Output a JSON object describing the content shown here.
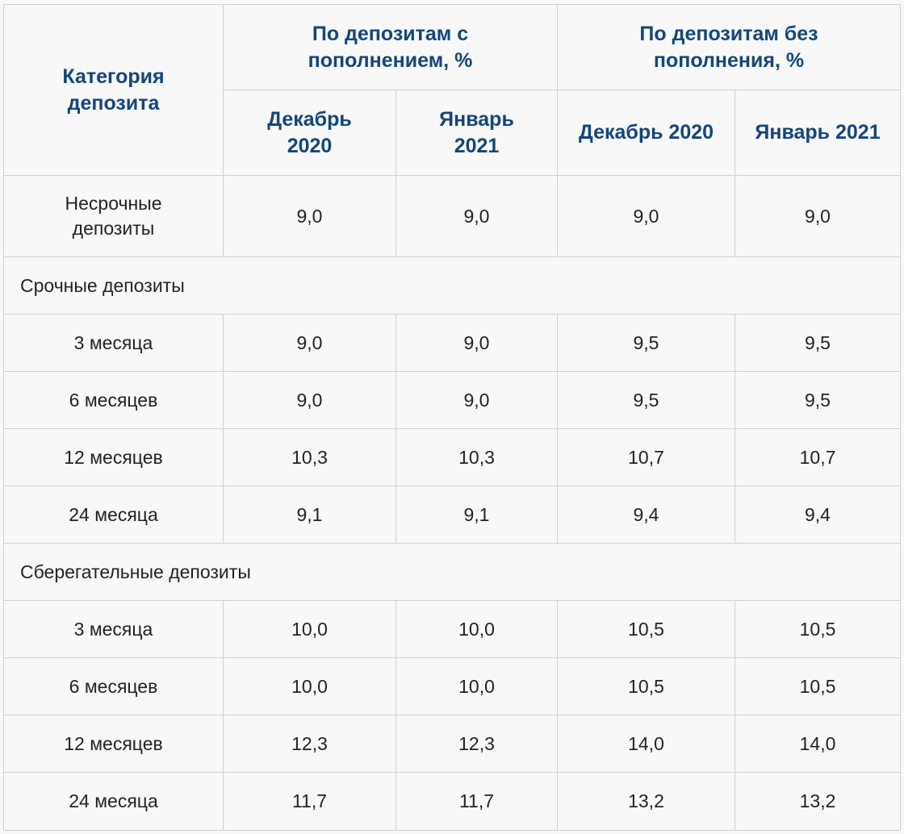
{
  "header": {
    "category": "Категория депозита",
    "group_with": "По депозитам с пополнением, %",
    "group_without": "По депозитам без пополнения, %",
    "with_dec": "Декабрь 2020",
    "with_jan": "Январь 2021",
    "without_dec": "Декабрь 2020",
    "without_jan": "Январь 2021"
  },
  "rows": [
    {
      "type": "data",
      "label": "Несрочные депозиты",
      "values": [
        "9,0",
        "9,0",
        "9,0",
        "9,0"
      ]
    },
    {
      "type": "section",
      "label": "Срочные депозиты"
    },
    {
      "type": "data",
      "label": "3 месяца",
      "values": [
        "9,0",
        "9,0",
        "9,5",
        "9,5"
      ]
    },
    {
      "type": "data",
      "label": "6 месяцев",
      "values": [
        "9,0",
        "9,0",
        "9,5",
        "9,5"
      ]
    },
    {
      "type": "data",
      "label": "12 месяцев",
      "values": [
        "10,3",
        "10,3",
        "10,7",
        "10,7"
      ]
    },
    {
      "type": "data",
      "label": "24 месяца",
      "values": [
        "9,1",
        "9,1",
        "9,4",
        "9,4"
      ]
    },
    {
      "type": "section",
      "label": "Сберегательные депозиты"
    },
    {
      "type": "data",
      "label": "3 месяца",
      "values": [
        "10,0",
        "10,0",
        "10,5",
        "10,5"
      ]
    },
    {
      "type": "data",
      "label": "6 месяцев",
      "values": [
        "10,0",
        "10,0",
        "10,5",
        "10,5"
      ]
    },
    {
      "type": "data",
      "label": "12 месяцев",
      "values": [
        "12,3",
        "12,3",
        "14,0",
        "14,0"
      ]
    },
    {
      "type": "data",
      "label": "24 месяца",
      "values": [
        "11,7",
        "11,7",
        "13,2",
        "13,2"
      ]
    }
  ]
}
